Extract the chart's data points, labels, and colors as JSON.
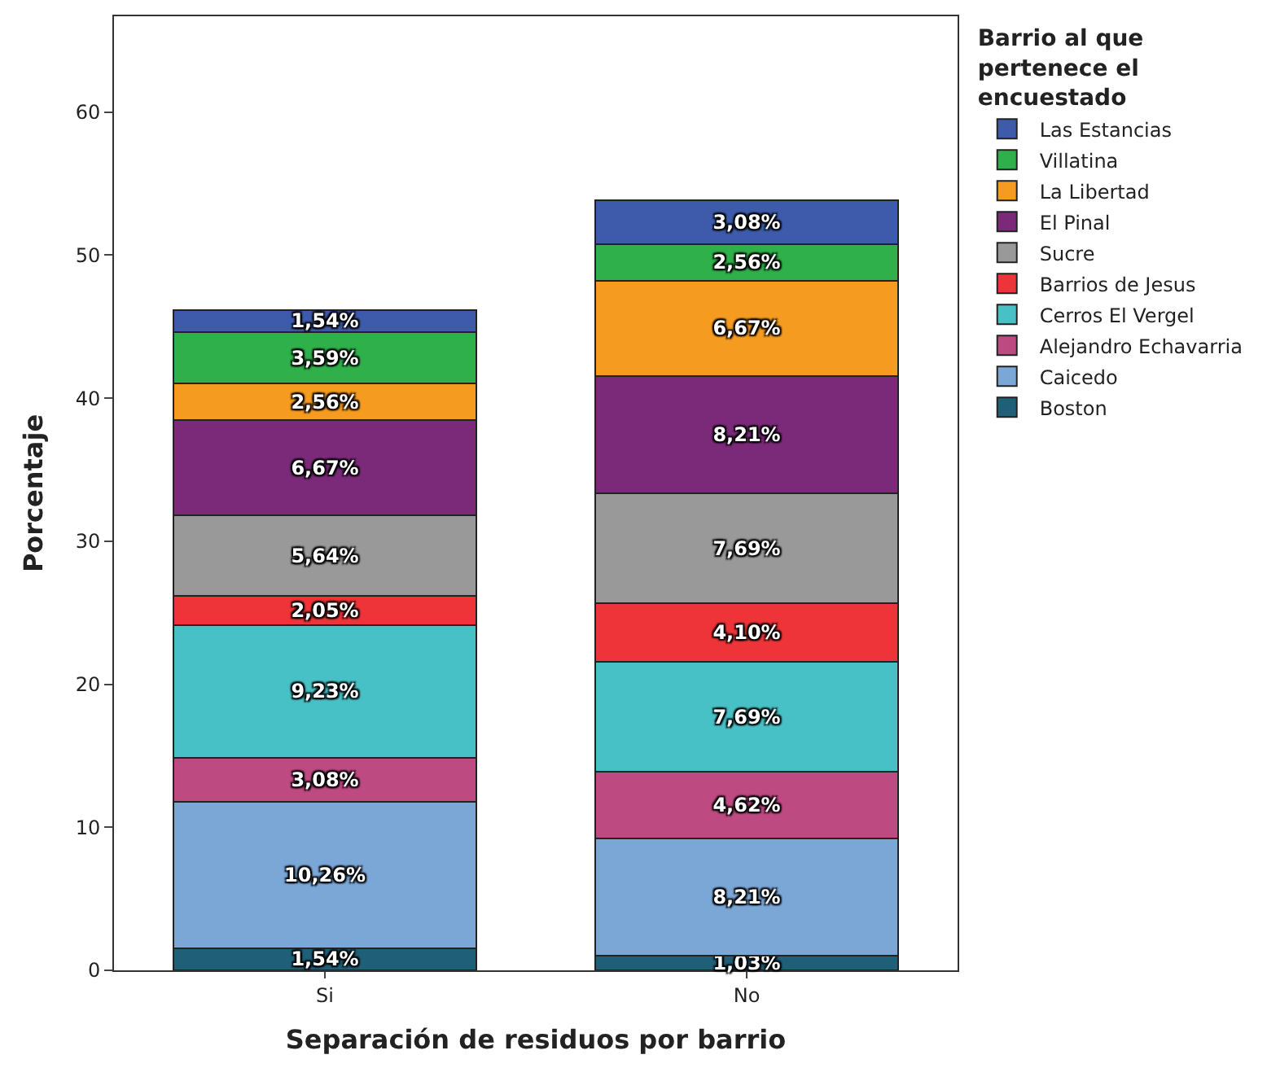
{
  "chart_data": {
    "type": "bar",
    "stacked": true,
    "xlabel": "Separación de residuos por barrio",
    "ylabel": "Porcentaje",
    "legend_title": "Barrio al que pertenece el encuestado",
    "legend": "right",
    "categories": [
      "Si",
      "No"
    ],
    "ylim": [
      0,
      66.7
    ],
    "yticks": [
      0,
      10,
      20,
      30,
      40,
      50,
      60
    ],
    "series": [
      {
        "name": "Boston",
        "color": "#1f5f77",
        "values": [
          1.54,
          1.03
        ],
        "value_labels": [
          "1,54%",
          "1,03%"
        ]
      },
      {
        "name": "Caicedo",
        "color": "#7ba7d7",
        "values": [
          10.26,
          8.21
        ],
        "value_labels": [
          "10,26%",
          "8,21%"
        ]
      },
      {
        "name": "Alejandro Echavarria",
        "color": "#be4a82",
        "values": [
          3.08,
          4.62
        ],
        "value_labels": [
          "3,08%",
          "4,62%"
        ]
      },
      {
        "name": "Cerros El Vergel",
        "color": "#48c1c6",
        "values": [
          9.23,
          7.69
        ],
        "value_labels": [
          "9,23%",
          "7,69%"
        ]
      },
      {
        "name": "Barrios de Jesus",
        "color": "#ee3438",
        "values": [
          2.05,
          4.1
        ],
        "value_labels": [
          "2,05%",
          "4,10%"
        ]
      },
      {
        "name": "Sucre",
        "color": "#999999",
        "values": [
          5.64,
          7.69
        ],
        "value_labels": [
          "5,64%",
          "7,69%"
        ]
      },
      {
        "name": "El Pinal",
        "color": "#7b2a7a",
        "values": [
          6.67,
          8.21
        ],
        "value_labels": [
          "6,67%",
          "8,21%"
        ]
      },
      {
        "name": "La Libertad",
        "color": "#f59b1f",
        "values": [
          2.56,
          6.67
        ],
        "value_labels": [
          "2,56%",
          "6,67%"
        ]
      },
      {
        "name": "Villatina",
        "color": "#2fb04a",
        "values": [
          3.59,
          2.56
        ],
        "value_labels": [
          "3,59%",
          "2,56%"
        ]
      },
      {
        "name": "Las Estancias",
        "color": "#3d5baa",
        "values": [
          1.54,
          3.08
        ],
        "value_labels": [
          "1,54%",
          "3,08%"
        ]
      }
    ]
  }
}
